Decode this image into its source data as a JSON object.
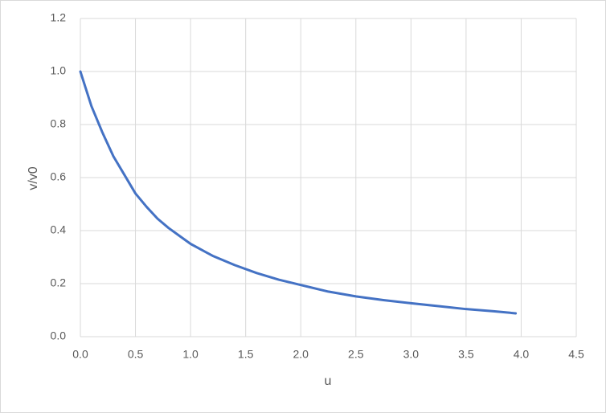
{
  "chart_data": {
    "type": "line",
    "x_label": "u",
    "y_label": "v/v0",
    "x": [
      0,
      0.1,
      0.2,
      0.3,
      0.4,
      0.5,
      0.6,
      0.7,
      0.8,
      0.9,
      1.0,
      1.2,
      1.4,
      1.6,
      1.8,
      2.0,
      2.25,
      2.5,
      2.75,
      3.0,
      3.25,
      3.5,
      3.75,
      3.95
    ],
    "series": [
      {
        "color": "#4472c4",
        "values": [
          1.0,
          0.87,
          0.77,
          0.68,
          0.61,
          0.54,
          0.49,
          0.445,
          0.41,
          0.38,
          0.35,
          0.305,
          0.27,
          0.24,
          0.215,
          0.195,
          0.17,
          0.152,
          0.138,
          0.126,
          0.115,
          0.104,
          0.096,
          0.088
        ]
      }
    ],
    "xlim": [
      0,
      4.5
    ],
    "xticks": [
      {
        "value": 0,
        "label": "0.0"
      },
      0.5,
      {
        "value": 1,
        "label": "1.0"
      },
      1.5,
      {
        "value": 2,
        "label": "2.0"
      },
      2.5,
      {
        "value": 3,
        "label": "3.0"
      },
      3.5,
      {
        "value": 4,
        "label": "4.0"
      },
      4.5
    ],
    "ylim": [
      0,
      1.2
    ],
    "yticks": [
      {
        "value": 0,
        "label": "0.0"
      },
      0.2,
      0.4,
      0.6,
      0.8,
      {
        "value": 1,
        "label": "1.0"
      },
      1.2
    ],
    "grid": true
  }
}
